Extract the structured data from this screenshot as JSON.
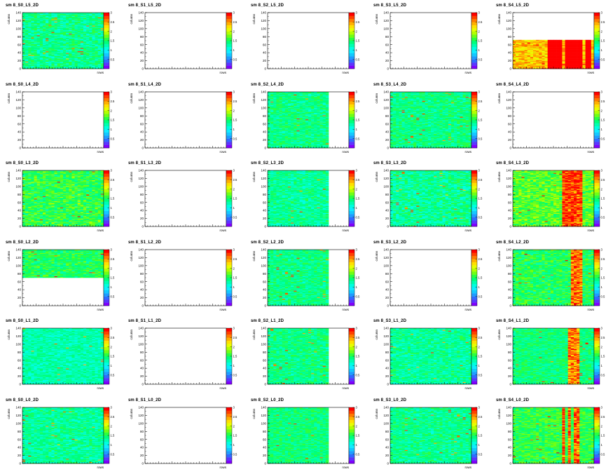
{
  "page_title": "",
  "colors": {
    "palette": [
      "#7f00ff",
      "#5a36ff",
      "#2f6bff",
      "#1e9cff",
      "#14c8ff",
      "#10ecff",
      "#00ffe0",
      "#00ffb0",
      "#00ff7a",
      "#2bff40",
      "#70ff14",
      "#b4ff00",
      "#e6ff00",
      "#ffe000",
      "#ffb000",
      "#ff7a00",
      "#ff4000",
      "#ff0000"
    ],
    "axis": "#000000",
    "frame": "#000000"
  },
  "chart_data": [
    {
      "type": "heatmap",
      "title": "sm 8_S0_L5_2D",
      "ylabel": "column",
      "xlabel": "rows",
      "ylim": [
        0,
        140
      ],
      "y_ticks": [
        "0",
        "20",
        "40",
        "60",
        "80",
        "100",
        "120",
        "140"
      ],
      "z_ticks": [
        "0.5",
        "1",
        "1.5",
        "2",
        "2.5",
        "3"
      ],
      "zlim": [
        0,
        3
      ],
      "filled": true,
      "fill_y": [
        0,
        140
      ],
      "base_level": 0.45,
      "spread": 0.18,
      "hot_columns": []
    },
    {
      "type": "heatmap",
      "title": "sm 8_S1_L5_2D",
      "ylabel": "column",
      "xlabel": "rows",
      "ylim": [
        0,
        140
      ],
      "y_ticks": [
        "0",
        "20",
        "40",
        "60",
        "80",
        "100",
        "120",
        "140"
      ],
      "z_ticks": [
        "0.5",
        "1",
        "1.5",
        "2",
        "2.5",
        "3"
      ],
      "zlim": [
        0,
        3
      ],
      "filled": false
    },
    {
      "type": "heatmap",
      "title": "sm 8_S2_L5_2D",
      "ylabel": "column",
      "xlabel": "rows",
      "ylim": [
        0,
        140
      ],
      "y_ticks": [
        "0",
        "20",
        "40",
        "60",
        "80",
        "100",
        "120",
        "140"
      ],
      "z_ticks": [
        "0.5",
        "1",
        "1.5",
        "2",
        "2.5",
        "3"
      ],
      "zlim": [
        0,
        3
      ],
      "filled": false
    },
    {
      "type": "heatmap",
      "title": "sm 8_S3_L5_2D",
      "ylabel": "column",
      "xlabel": "rows",
      "ylim": [
        0,
        140
      ],
      "y_ticks": [
        "0",
        "20",
        "40",
        "60",
        "80",
        "100",
        "120",
        "140"
      ],
      "z_ticks": [
        "0.5",
        "1",
        "1.5",
        "2",
        "2.5",
        "3"
      ],
      "zlim": [
        0,
        3
      ],
      "filled": false
    },
    {
      "type": "heatmap",
      "title": "sm 8_S4_L5_2D",
      "ylabel": "column",
      "xlabel": "rows",
      "ylim": [
        0,
        140
      ],
      "y_ticks": [
        "0",
        "20",
        "40",
        "60",
        "80",
        "100",
        "120",
        "140"
      ],
      "z_ticks": [
        "0.5",
        "1",
        "1.5",
        "2",
        "2.5",
        "3"
      ],
      "zlim": [
        0,
        3
      ],
      "filled": true,
      "fill_y": [
        0,
        72
      ],
      "base_level": 0.78,
      "spread": 0.2,
      "hot_columns": [
        0.45,
        0.5,
        0.55,
        0.6,
        0.65,
        0.7,
        0.75,
        0.8,
        0.85,
        0.9,
        0.95
      ]
    },
    {
      "type": "heatmap",
      "title": "sm 8_S0_L4_2D",
      "ylabel": "column",
      "xlabel": "rows",
      "ylim": [
        0,
        140
      ],
      "y_ticks": [
        "0",
        "20",
        "40",
        "60",
        "80",
        "100",
        "120",
        "140"
      ],
      "z_ticks": [
        "0.5",
        "1",
        "1.5",
        "2",
        "2.5",
        "3"
      ],
      "zlim": [
        0,
        3
      ],
      "filled": false
    },
    {
      "type": "heatmap",
      "title": "sm 8_S1_L4_2D",
      "ylabel": "column",
      "xlabel": "rows",
      "ylim": [
        0,
        140
      ],
      "y_ticks": [
        "0",
        "20",
        "40",
        "60",
        "80",
        "100",
        "120",
        "140"
      ],
      "z_ticks": [
        "0.5",
        "1",
        "1.5",
        "2",
        "2.5",
        "3"
      ],
      "zlim": [
        0,
        3
      ],
      "filled": false
    },
    {
      "type": "heatmap",
      "title": "sm 8_S2_L4_2D",
      "ylabel": "column",
      "xlabel": "rows",
      "ylim": [
        0,
        140
      ],
      "y_ticks": [
        "0",
        "20",
        "40",
        "60",
        "80",
        "100",
        "120",
        "140"
      ],
      "z_ticks": [
        "0.5",
        "1",
        "1.5",
        "2",
        "2.5",
        "3"
      ],
      "zlim": [
        0,
        3
      ],
      "filled": true,
      "fill_y": [
        0,
        140
      ],
      "fill_x": [
        0,
        0.76
      ],
      "base_level": 0.46,
      "spread": 0.16,
      "hot_columns": []
    },
    {
      "type": "heatmap",
      "title": "sm 8_S3_L4_2D",
      "ylabel": "column",
      "xlabel": "rows",
      "ylim": [
        0,
        140
      ],
      "y_ticks": [
        "0",
        "20",
        "40",
        "60",
        "80",
        "100",
        "120",
        "140"
      ],
      "z_ticks": [
        "0.5",
        "1",
        "1.5",
        "2",
        "2.5",
        "3"
      ],
      "zlim": [
        0,
        3
      ],
      "filled": true,
      "fill_y": [
        0,
        140
      ],
      "base_level": 0.46,
      "spread": 0.16,
      "hot_columns": []
    },
    {
      "type": "heatmap",
      "title": "sm 8_S4_L4_2D",
      "ylabel": "column",
      "xlabel": "rows",
      "ylim": [
        0,
        140
      ],
      "y_ticks": [
        "0",
        "20",
        "40",
        "60",
        "80",
        "100",
        "120",
        "140"
      ],
      "z_ticks": [
        "0.5",
        "1",
        "1.5",
        "2",
        "2.5",
        "3"
      ],
      "zlim": [
        0,
        3
      ],
      "filled": false
    },
    {
      "type": "heatmap",
      "title": "sm 8_S0_L3_2D",
      "ylabel": "column",
      "xlabel": "rows",
      "ylim": [
        0,
        140
      ],
      "y_ticks": [
        "0",
        "20",
        "40",
        "60",
        "80",
        "100",
        "120",
        "140"
      ],
      "z_ticks": [
        "0.5",
        "1",
        "1.5",
        "2",
        "2.5",
        "3"
      ],
      "zlim": [
        0,
        3
      ],
      "filled": true,
      "fill_y": [
        0,
        140
      ],
      "base_level": 0.52,
      "spread": 0.2,
      "hot_columns": []
    },
    {
      "type": "heatmap",
      "title": "sm 8_S1_L3_2D",
      "ylabel": "column",
      "xlabel": "rows",
      "ylim": [
        0,
        140
      ],
      "y_ticks": [
        "0",
        "20",
        "40",
        "60",
        "80",
        "100",
        "120",
        "140"
      ],
      "z_ticks": [
        "0.5",
        "1",
        "1.5",
        "2",
        "2.5",
        "3"
      ],
      "zlim": [
        0,
        3
      ],
      "filled": false
    },
    {
      "type": "heatmap",
      "title": "sm 8_S2_L3_2D",
      "ylabel": "column",
      "xlabel": "rows",
      "ylim": [
        0,
        140
      ],
      "y_ticks": [
        "0",
        "20",
        "40",
        "60",
        "80",
        "100",
        "120",
        "140"
      ],
      "z_ticks": [
        "0.5",
        "1",
        "1.5",
        "2",
        "2.5",
        "3"
      ],
      "zlim": [
        0,
        3
      ],
      "filled": true,
      "fill_y": [
        0,
        140
      ],
      "fill_x": [
        0,
        0.76
      ],
      "base_level": 0.44,
      "spread": 0.16,
      "hot_columns": []
    },
    {
      "type": "heatmap",
      "title": "sm 8_S3_L3_2D",
      "ylabel": "column",
      "xlabel": "rows",
      "ylim": [
        0,
        140
      ],
      "y_ticks": [
        "0",
        "20",
        "40",
        "60",
        "80",
        "100",
        "120",
        "140"
      ],
      "z_ticks": [
        "0.5",
        "1",
        "1.5",
        "2",
        "2.5",
        "3"
      ],
      "zlim": [
        0,
        3
      ],
      "filled": true,
      "fill_y": [
        0,
        140
      ],
      "base_level": 0.44,
      "spread": 0.2,
      "hot_columns": []
    },
    {
      "type": "heatmap",
      "title": "sm 8_S4_L3_2D",
      "ylabel": "column",
      "xlabel": "rows",
      "ylim": [
        0,
        140
      ],
      "y_ticks": [
        "0",
        "20",
        "40",
        "60",
        "80",
        "100",
        "120",
        "140"
      ],
      "z_ticks": [
        "0.5",
        "1",
        "1.5",
        "2",
        "2.5",
        "3"
      ],
      "zlim": [
        0,
        3
      ],
      "filled": true,
      "fill_y": [
        0,
        140
      ],
      "base_level": 0.56,
      "spread": 0.2,
      "hot_columns": [
        0.62,
        0.68,
        0.72,
        0.75,
        0.78,
        0.82
      ]
    },
    {
      "type": "heatmap",
      "title": "sm 8_S0_L2_2D",
      "ylabel": "column",
      "xlabel": "rows",
      "ylim": [
        0,
        140
      ],
      "y_ticks": [
        "0",
        "20",
        "40",
        "60",
        "80",
        "100",
        "120",
        "140"
      ],
      "z_ticks": [
        "0.5",
        "1",
        "1.5",
        "2",
        "2.5",
        "3"
      ],
      "zlim": [
        0,
        3
      ],
      "filled": true,
      "fill_y": [
        70,
        140
      ],
      "base_level": 0.5,
      "spread": 0.16,
      "hot_columns": []
    },
    {
      "type": "heatmap",
      "title": "sm 8_S1_L2_2D",
      "ylabel": "column",
      "xlabel": "rows",
      "ylim": [
        0,
        140
      ],
      "y_ticks": [
        "0",
        "20",
        "40",
        "60",
        "80",
        "100",
        "120",
        "140"
      ],
      "z_ticks": [
        "0.5",
        "1",
        "1.5",
        "2",
        "2.5",
        "3"
      ],
      "zlim": [
        0,
        3
      ],
      "filled": false
    },
    {
      "type": "heatmap",
      "title": "sm 8_S2_L2_2D",
      "ylabel": "column",
      "xlabel": "rows",
      "ylim": [
        0,
        140
      ],
      "y_ticks": [
        "0",
        "20",
        "40",
        "60",
        "80",
        "100",
        "120",
        "140"
      ],
      "z_ticks": [
        "0.5",
        "1",
        "1.5",
        "2",
        "2.5",
        "3"
      ],
      "zlim": [
        0,
        3
      ],
      "filled": true,
      "fill_y": [
        0,
        140
      ],
      "fill_x": [
        0,
        0.76
      ],
      "base_level": 0.46,
      "spread": 0.16,
      "hot_columns": []
    },
    {
      "type": "heatmap",
      "title": "sm 8_S3_L2_2D",
      "ylabel": "column",
      "xlabel": "rows",
      "ylim": [
        0,
        140
      ],
      "y_ticks": [
        "0",
        "20",
        "40",
        "60",
        "80",
        "100",
        "120",
        "140"
      ],
      "z_ticks": [
        "0.5",
        "1",
        "1.5",
        "2",
        "2.5",
        "3"
      ],
      "zlim": [
        0,
        3
      ],
      "filled": false
    },
    {
      "type": "heatmap",
      "title": "sm 8_S4_L2_2D",
      "ylabel": "column",
      "xlabel": "rows",
      "ylim": [
        0,
        140
      ],
      "y_ticks": [
        "0",
        "20",
        "40",
        "60",
        "80",
        "100",
        "120",
        "140"
      ],
      "z_ticks": [
        "0.5",
        "1",
        "1.5",
        "2",
        "2.5",
        "3"
      ],
      "zlim": [
        0,
        3
      ],
      "filled": true,
      "fill_y": [
        0,
        140
      ],
      "base_level": 0.5,
      "spread": 0.18,
      "hot_columns": [
        0.75,
        0.8,
        0.85
      ]
    },
    {
      "type": "heatmap",
      "title": "sm 8_S0_L1_2D",
      "ylabel": "column",
      "xlabel": "rows",
      "ylim": [
        0,
        140
      ],
      "y_ticks": [
        "0",
        "20",
        "40",
        "60",
        "80",
        "100",
        "120",
        "140"
      ],
      "z_ticks": [
        "0.5",
        "1",
        "1.5",
        "2",
        "2.5",
        "3"
      ],
      "zlim": [
        0,
        3
      ],
      "filled": true,
      "fill_y": [
        0,
        140
      ],
      "base_level": 0.42,
      "spread": 0.14,
      "hot_columns": []
    },
    {
      "type": "heatmap",
      "title": "sm 8_S1_L1_2D",
      "ylabel": "column",
      "xlabel": "rows",
      "ylim": [
        0,
        140
      ],
      "y_ticks": [
        "0",
        "20",
        "40",
        "60",
        "80",
        "100",
        "120",
        "140"
      ],
      "z_ticks": [
        "0.5",
        "1",
        "1.5",
        "2",
        "2.5",
        "3"
      ],
      "zlim": [
        0,
        3
      ],
      "filled": false
    },
    {
      "type": "heatmap",
      "title": "sm 8_S2_L1_2D",
      "ylabel": "column",
      "xlabel": "rows",
      "ylim": [
        0,
        140
      ],
      "y_ticks": [
        "0",
        "20",
        "40",
        "60",
        "80",
        "100",
        "120",
        "140"
      ],
      "z_ticks": [
        "0.5",
        "1",
        "1.5",
        "2",
        "2.5",
        "3"
      ],
      "zlim": [
        0,
        3
      ],
      "filled": true,
      "fill_y": [
        0,
        140
      ],
      "fill_x": [
        0,
        0.76
      ],
      "base_level": 0.46,
      "spread": 0.16,
      "hot_columns": []
    },
    {
      "type": "heatmap",
      "title": "sm 8_S3_L1_2D",
      "ylabel": "column",
      "xlabel": "rows",
      "ylim": [
        0,
        140
      ],
      "y_ticks": [
        "0",
        "20",
        "40",
        "60",
        "80",
        "100",
        "120",
        "140"
      ],
      "z_ticks": [
        "0.5",
        "1",
        "1.5",
        "2",
        "2.5",
        "3"
      ],
      "zlim": [
        0,
        3
      ],
      "filled": true,
      "fill_y": [
        0,
        140
      ],
      "base_level": 0.44,
      "spread": 0.16,
      "hot_columns": []
    },
    {
      "type": "heatmap",
      "title": "sm 8_S4_L1_2D",
      "ylabel": "column",
      "xlabel": "rows",
      "ylim": [
        0,
        140
      ],
      "y_ticks": [
        "0",
        "20",
        "40",
        "60",
        "80",
        "100",
        "120",
        "140"
      ],
      "z_ticks": [
        "0.5",
        "1",
        "1.5",
        "2",
        "2.5",
        "3"
      ],
      "zlim": [
        0,
        3
      ],
      "filled": true,
      "fill_y": [
        0,
        140
      ],
      "base_level": 0.47,
      "spread": 0.16,
      "hot_columns": [
        0.72,
        0.78
      ]
    },
    {
      "type": "heatmap",
      "title": "sm 8_S0_L0_2D",
      "ylabel": "column",
      "xlabel": "rows",
      "ylim": [
        0,
        140
      ],
      "y_ticks": [
        "0",
        "20",
        "40",
        "60",
        "80",
        "100",
        "120",
        "140"
      ],
      "z_ticks": [
        "0.5",
        "1",
        "1.5",
        "2",
        "2.5",
        "3"
      ],
      "zlim": [
        0,
        3
      ],
      "filled": true,
      "fill_y": [
        0,
        140
      ],
      "base_level": 0.44,
      "spread": 0.16,
      "hot_columns": []
    },
    {
      "type": "heatmap",
      "title": "sm 8_S1_L0_2D",
      "ylabel": "column",
      "xlabel": "rows",
      "ylim": [
        0,
        140
      ],
      "y_ticks": [
        "0",
        "20",
        "40",
        "60",
        "80",
        "100",
        "120",
        "140"
      ],
      "z_ticks": [
        "0.5",
        "1",
        "1.5",
        "2",
        "2.5",
        "3"
      ],
      "zlim": [
        0,
        3
      ],
      "filled": false
    },
    {
      "type": "heatmap",
      "title": "sm 8_S2_L0_2D",
      "ylabel": "column",
      "xlabel": "rows",
      "ylim": [
        0,
        140
      ],
      "y_ticks": [
        "0",
        "20",
        "40",
        "60",
        "80",
        "100",
        "120",
        "140"
      ],
      "z_ticks": [
        "0.5",
        "1",
        "1.5",
        "2",
        "2.5",
        "3"
      ],
      "zlim": [
        0,
        3
      ],
      "filled": true,
      "fill_y": [
        0,
        140
      ],
      "fill_x": [
        0,
        0.76
      ],
      "base_level": 0.47,
      "spread": 0.16,
      "hot_columns": []
    },
    {
      "type": "heatmap",
      "title": "sm 8_S3_L0_2D",
      "ylabel": "column",
      "xlabel": "rows",
      "ylim": [
        0,
        140
      ],
      "y_ticks": [
        "0",
        "20",
        "40",
        "60",
        "80",
        "100",
        "120",
        "140"
      ],
      "z_ticks": [
        "0.5",
        "1",
        "1.5",
        "2",
        "2.5",
        "3"
      ],
      "zlim": [
        0,
        3
      ],
      "filled": true,
      "fill_y": [
        0,
        140
      ],
      "base_level": 0.45,
      "spread": 0.16,
      "hot_columns": []
    },
    {
      "type": "heatmap",
      "title": "sm 8_S4_L0_2D",
      "ylabel": "column",
      "xlabel": "rows",
      "ylim": [
        0,
        140
      ],
      "y_ticks": [
        "0",
        "20",
        "40",
        "60",
        "80",
        "100",
        "120",
        "140"
      ],
      "z_ticks": [
        "0.5",
        "1",
        "1.5",
        "2",
        "2.5",
        "3"
      ],
      "zlim": [
        0,
        3
      ],
      "filled": true,
      "fill_y": [
        0,
        140
      ],
      "base_level": 0.52,
      "spread": 0.18,
      "hot_columns": [
        0.62,
        0.7,
        0.78
      ]
    }
  ]
}
